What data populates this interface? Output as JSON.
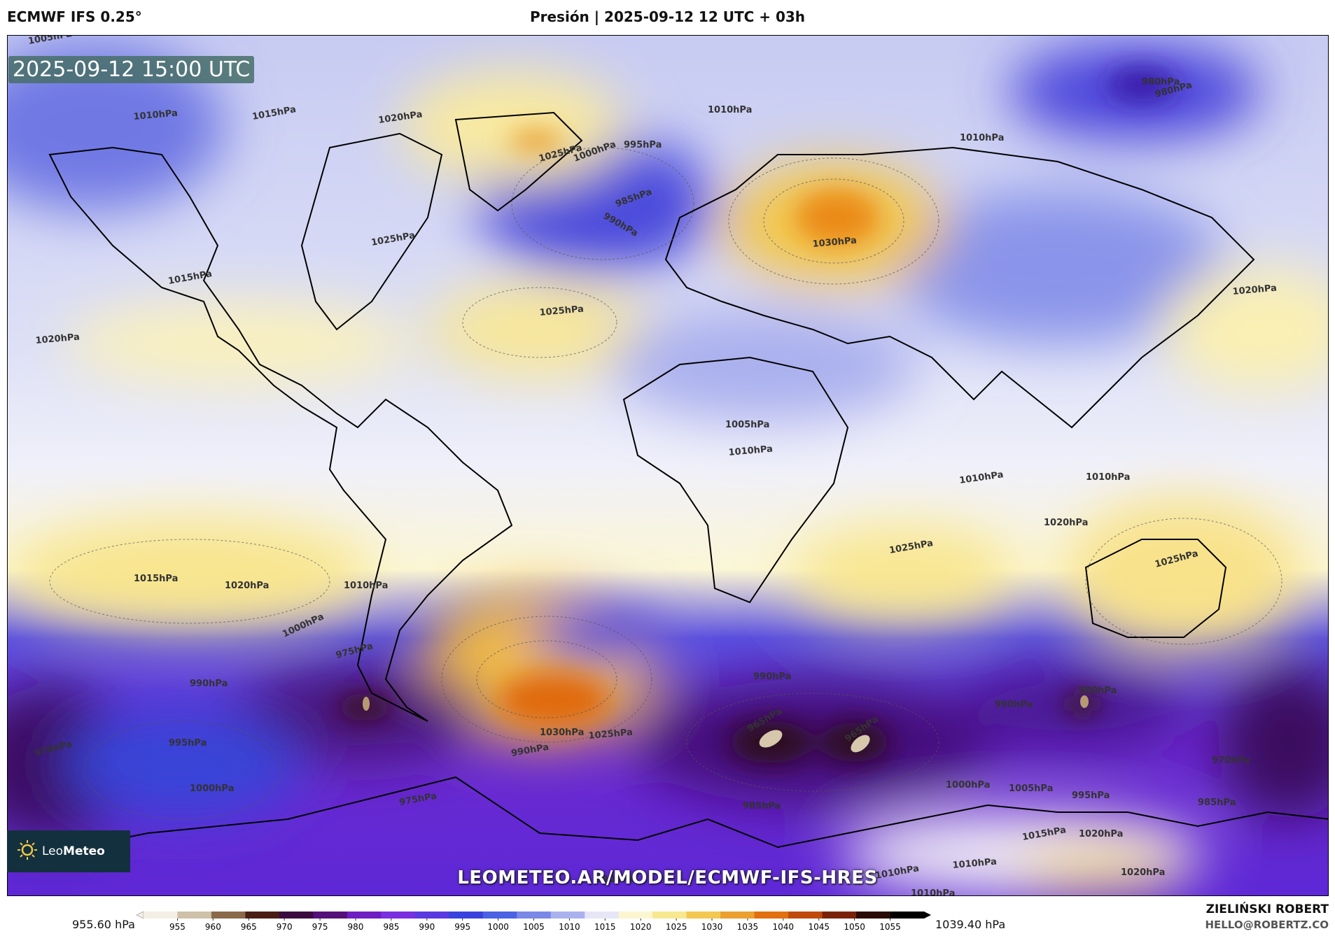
{
  "header": {
    "model": "ECMWF IFS 0.25°",
    "title": "Presión | 2025-09-12 12 UTC + 03h"
  },
  "timestamp": "2025-09-12 15:00 UTC",
  "logo": {
    "text_light": "Leo",
    "text_bold": "Meteo"
  },
  "url": "LEOMETEO.AR/MODEL/ECMWF-IFS-HRES",
  "legend": {
    "min_label": "955.60 hPa",
    "max_label": "1039.40 hPa",
    "ticks": [
      "955",
      "960",
      "965",
      "970",
      "975",
      "980",
      "985",
      "990",
      "995",
      "1000",
      "1005",
      "1010",
      "1015",
      "1020",
      "1025",
      "1030",
      "1035",
      "1040",
      "1045",
      "1050",
      "1055"
    ],
    "colors": [
      "#f4efe6",
      "#cfc0a8",
      "#8a6a4a",
      "#4a1e14",
      "#3a0a40",
      "#55107a",
      "#6f1ec2",
      "#7a30df",
      "#5a3ae0",
      "#3a42dd",
      "#4b62e2",
      "#7a88e6",
      "#aab2ee",
      "#e6e6f6",
      "#fbf6cf",
      "#f8e890",
      "#f2c850",
      "#eba030",
      "#e07010",
      "#c04a0a",
      "#7a2208",
      "#2a0c06",
      "#000000"
    ]
  },
  "credit": {
    "name": "ZIELIŃSKI ROBERT",
    "email": "HELLO@ROBERTZ.CO"
  },
  "isobar_labels": [
    "1005hPa",
    "1010hPa",
    "1015hPa",
    "1020hPa",
    "1025hPa",
    "1030hPa",
    "1000hPa",
    "995hPa",
    "990hPa",
    "985hPa",
    "980hPa",
    "975hPa",
    "970hPa",
    "965hPa"
  ],
  "pressure_systems": [
    {
      "kind": "high",
      "value": 1030
    },
    {
      "kind": "high",
      "value": 1025
    },
    {
      "kind": "high",
      "value": 1025
    },
    {
      "kind": "high",
      "value": 1030
    },
    {
      "kind": "high",
      "value": 1025
    },
    {
      "kind": "high",
      "value": 1025
    },
    {
      "kind": "high",
      "value": 1020
    },
    {
      "kind": "low",
      "value": 985
    },
    {
      "kind": "low",
      "value": 980
    },
    {
      "kind": "low",
      "value": 965
    },
    {
      "kind": "low",
      "value": 965
    },
    {
      "kind": "low",
      "value": 975
    },
    {
      "kind": "low",
      "value": 1000
    },
    {
      "kind": "low",
      "value": 1005
    },
    {
      "kind": "low",
      "value": 970
    }
  ]
}
